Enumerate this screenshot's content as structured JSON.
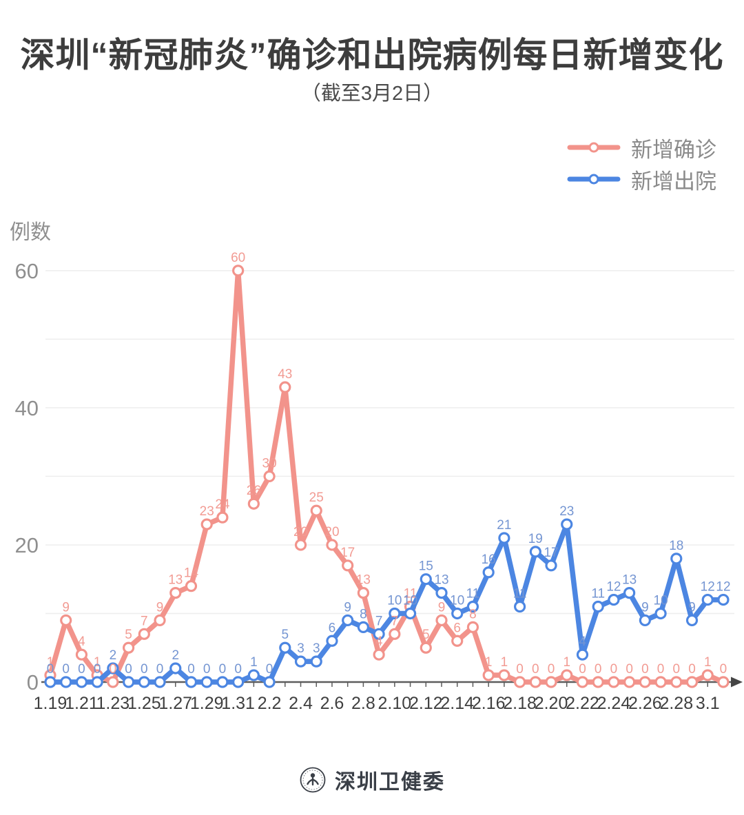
{
  "title": "深圳“新冠肺炎”确诊和出院病例每日新增变化",
  "subtitle": "（截至3月2日）",
  "legend": [
    {
      "id": "confirmed",
      "label": "新增确诊",
      "color": "#F2938B"
    },
    {
      "id": "discharged",
      "label": "新增出院",
      "color": "#4C86E2"
    }
  ],
  "footer": {
    "source_label": "深圳卫健委",
    "logo": "shenzhen-health-commission-emblem"
  },
  "colors": {
    "title_text": "#3d3d3d",
    "axis_line": "#5c5c5c",
    "x_tick_text": "#3f3f3f",
    "y_tick_text": "#8f8f8f",
    "gridline": "#ededed",
    "confirmed": "#F2938B",
    "confirmed_label": "#F29B93",
    "discharged": "#4C86E2",
    "discharged_label": "#7495D2"
  },
  "chart_data": {
    "type": "line",
    "x": [
      "1.19",
      "1.20",
      "1.21",
      "1.22",
      "1.23",
      "1.24",
      "1.25",
      "1.26",
      "1.27",
      "1.28",
      "1.29",
      "1.30",
      "1.31",
      "2.1",
      "2.2",
      "2.3",
      "2.4",
      "2.5",
      "2.6",
      "2.7",
      "2.8",
      "2.9",
      "2.10",
      "2.11",
      "2.12",
      "2.13",
      "2.14",
      "2.15",
      "2.16",
      "2.17",
      "2.18",
      "2.19",
      "2.20",
      "2.21",
      "2.22",
      "2.23",
      "2.24",
      "2.25",
      "2.26",
      "2.27",
      "2.28",
      "2.29",
      "3.1",
      "3.2"
    ],
    "x_tick_labels": [
      "1.19",
      "1.21",
      "1.23",
      "1.25",
      "1.27",
      "1.29",
      "1.31",
      "2.2",
      "2.4",
      "2.6",
      "2.8",
      "2.10",
      "2.12",
      "2.14",
      "2.16",
      "2.18",
      "2.20",
      "2.22",
      "2.24",
      "2.26",
      "2.28",
      "3.1"
    ],
    "series": [
      {
        "id": "confirmed",
        "name": "新增确诊",
        "color": "#F2938B",
        "label_color": "#F29B93",
        "values": [
          1,
          9,
          4,
          1,
          0,
          5,
          7,
          9,
          13,
          14,
          23,
          24,
          60,
          26,
          30,
          43,
          20,
          25,
          20,
          17,
          13,
          4,
          7,
          11,
          5,
          9,
          6,
          8,
          1,
          1,
          0,
          0,
          0,
          1,
          0,
          0,
          0,
          0,
          0,
          0,
          0,
          0,
          1,
          0
        ]
      },
      {
        "id": "discharged",
        "name": "新增出院",
        "color": "#4C86E2",
        "label_color": "#7495D2",
        "values": [
          0,
          0,
          0,
          0,
          2,
          0,
          0,
          0,
          2,
          0,
          0,
          0,
          0,
          1,
          0,
          5,
          3,
          3,
          6,
          9,
          8,
          7,
          10,
          10,
          15,
          13,
          10,
          11,
          16,
          21,
          11,
          19,
          17,
          23,
          4,
          11,
          12,
          13,
          9,
          10,
          18,
          9,
          12,
          12
        ]
      }
    ],
    "title": "深圳“新冠肺炎”确诊和出院病例每日新增变化",
    "subtitle": "（截至3月2日）",
    "xlabel": "",
    "ylabel": "例数",
    "y_ticks": [
      0,
      20,
      40,
      60
    ],
    "grid_values": [
      10,
      20,
      30,
      40,
      50,
      60
    ],
    "ylim": [
      0,
      62
    ],
    "grid": "horizontal",
    "legend_position": "top-right",
    "point_labels": "shown"
  }
}
